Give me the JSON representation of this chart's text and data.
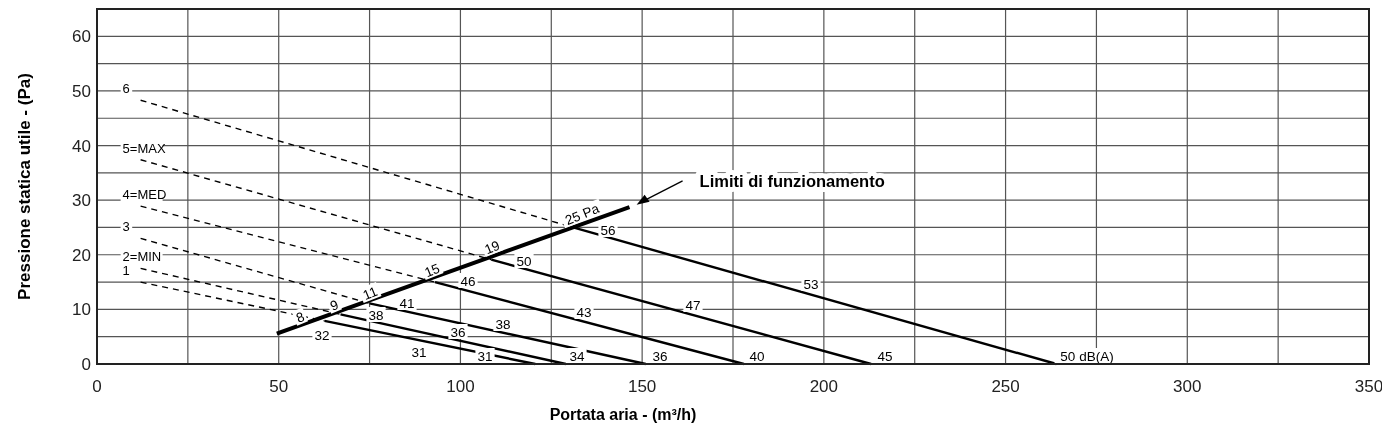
{
  "chart_data": {
    "type": "line",
    "xlabel": "Portata aria - (m³/h)",
    "ylabel": "Pressione statica utile - (Pa)",
    "xlim": [
      0,
      350
    ],
    "ylim": [
      0,
      65
    ],
    "xticks": [
      0,
      {
        "value": 25,
        "label": null
      },
      50,
      {
        "value": 75,
        "label": null
      },
      100,
      {
        "value": 125,
        "label": null
      },
      150,
      {
        "value": 175,
        "label": null
      },
      200,
      {
        "value": 225,
        "label": null
      },
      250,
      {
        "value": 275,
        "label": null
      },
      300,
      {
        "value": 325,
        "label": null
      },
      350
    ],
    "yticks": [
      0,
      {
        "value": 5,
        "label": null
      },
      10,
      {
        "value": 15,
        "label": null
      },
      20,
      {
        "value": 25,
        "label": null
      },
      30,
      {
        "value": 35,
        "label": null
      },
      40,
      {
        "value": 45,
        "label": null
      },
      50,
      {
        "value": 55,
        "label": null
      },
      60
    ],
    "grid": true,
    "marker": "none",
    "series": [
      {
        "name": "6",
        "color": "#000000",
        "line_style": "dashed",
        "x": [
          12,
          131
        ],
        "values": [
          48.3,
          25
        ]
      },
      {
        "color": "#000000",
        "line_style": "solid",
        "x": [
          131,
          264
        ],
        "values": [
          25,
          0
        ]
      },
      {
        "name": "5=MAX",
        "color": "#000000",
        "line_style": "dashed",
        "x": [
          12,
          108.5
        ],
        "values": [
          37.4,
          19.1
        ]
      },
      {
        "color": "#000000",
        "line_style": "solid",
        "x": [
          108.5,
          213
        ],
        "values": [
          19.1,
          0
        ]
      },
      {
        "name": "4=MED",
        "color": "#000000",
        "line_style": "dashed",
        "x": [
          12,
          93
        ],
        "values": [
          28.9,
          15
        ]
      },
      {
        "color": "#000000",
        "line_style": "solid",
        "x": [
          93,
          178
        ],
        "values": [
          15,
          0
        ]
      },
      {
        "name": "3",
        "color": "#000000",
        "line_style": "dashed",
        "x": [
          12,
          75
        ],
        "values": [
          23,
          11.1
        ]
      },
      {
        "color": "#000000",
        "line_style": "solid",
        "x": [
          75,
          151
        ],
        "values": [
          11.1,
          0
        ]
      },
      {
        "name": "2=MIN",
        "color": "#000000",
        "line_style": "dashed",
        "x": [
          12,
          67
        ],
        "values": [
          17.5,
          9.1
        ]
      },
      {
        "color": "#000000",
        "line_style": "solid",
        "x": [
          67,
          129
        ],
        "values": [
          9.1,
          0
        ]
      },
      {
        "name": "1",
        "color": "#000000",
        "line_style": "dashed",
        "x": [
          12,
          62.6
        ],
        "values": [
          15,
          7.9
        ]
      },
      {
        "color": "#000000",
        "line_style": "solid",
        "x": [
          62.6,
          120.6
        ],
        "values": [
          7.9,
          0
        ]
      },
      {
        "color": "#000000",
        "line_style": "solid",
        "x": [
          50,
          146
        ],
        "values": [
          5.7,
          28.6
        ]
      }
    ],
    "annotations": [
      "8",
      "9",
      "11",
      "15",
      "19",
      "25 Pa",
      "32",
      "31",
      "38",
      "41",
      "46",
      "50",
      "56",
      "53",
      "47",
      "43",
      "38",
      "36",
      "31",
      "34",
      "36",
      "40",
      "45",
      "50 dB(A)",
      "Limiti di funzionamento"
    ]
  }
}
